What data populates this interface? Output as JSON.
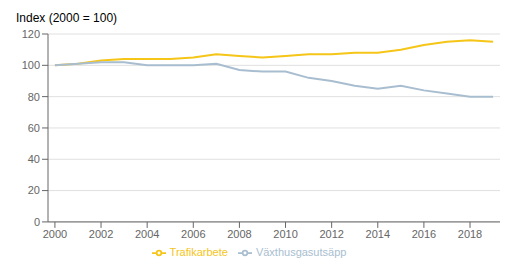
{
  "chart_data": {
    "type": "line",
    "title": "Index (2000 = 100)",
    "x": [
      2000,
      2001,
      2002,
      2003,
      2004,
      2005,
      2006,
      2007,
      2008,
      2009,
      2010,
      2011,
      2012,
      2013,
      2014,
      2015,
      2016,
      2017,
      2018,
      2019
    ],
    "series": [
      {
        "name": "Trafikarbete",
        "color": "#F5C518",
        "values": [
          100,
          101,
          103,
          104,
          104,
          104,
          105,
          107,
          106,
          105,
          106,
          107,
          107,
          108,
          108,
          110,
          113,
          115,
          116,
          115
        ]
      },
      {
        "name": "Växthusgasutsäpp",
        "color": "#A8BED0",
        "values": [
          100,
          101,
          102,
          102,
          100,
          100,
          100,
          101,
          97,
          96,
          96,
          92,
          90,
          87,
          85,
          87,
          84,
          82,
          80,
          80
        ]
      }
    ],
    "xlim": [
      1999.7,
      2019.3
    ],
    "xticks": [
      2000,
      2002,
      2004,
      2006,
      2008,
      2010,
      2012,
      2014,
      2016,
      2018
    ],
    "ylim": [
      0,
      120
    ],
    "yticks": [
      0,
      20,
      40,
      60,
      80,
      100,
      120
    ],
    "grid": true,
    "legend": "bottom"
  }
}
